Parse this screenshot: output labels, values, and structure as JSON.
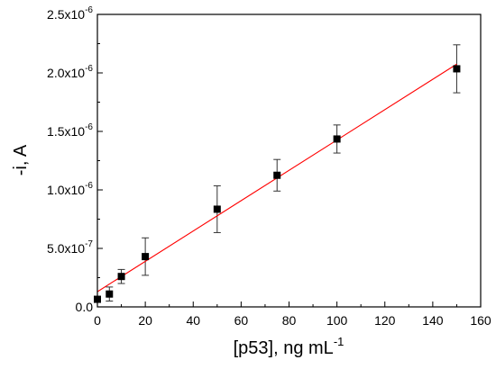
{
  "chart_data": {
    "type": "scatter",
    "title": "",
    "xlabel": "[p53], ng mL",
    "xlabel_sup": "-1",
    "ylabel": "-i, A",
    "xlim": [
      0,
      160
    ],
    "ylim": [
      0,
      2.5e-06
    ],
    "grid": false,
    "legend": "none",
    "x_ticks": [
      {
        "value": 0,
        "label": "0"
      },
      {
        "value": 20,
        "label": "20"
      },
      {
        "value": 40,
        "label": "40"
      },
      {
        "value": 60,
        "label": "60"
      },
      {
        "value": 80,
        "label": "80"
      },
      {
        "value": 100,
        "label": "100"
      },
      {
        "value": 120,
        "label": "120"
      },
      {
        "value": 140,
        "label": "140"
      },
      {
        "value": 160,
        "label": "160"
      }
    ],
    "y_ticks": [
      {
        "value": 0,
        "mantissa": "0.0",
        "exp": ""
      },
      {
        "value": 5e-07,
        "mantissa": "5.0x10",
        "exp": "-7"
      },
      {
        "value": 1e-06,
        "mantissa": "1.0x10",
        "exp": "-6"
      },
      {
        "value": 1.5e-06,
        "mantissa": "1.5x10",
        "exp": "-6"
      },
      {
        "value": 2e-06,
        "mantissa": "2.0x10",
        "exp": "-6"
      },
      {
        "value": 2.5e-06,
        "mantissa": "2.5x10",
        "exp": "-6"
      }
    ],
    "series": [
      {
        "marker": "square",
        "color": "#000000",
        "points": [
          {
            "x": 0,
            "y": 6.5e-08,
            "err": 0
          },
          {
            "x": 5,
            "y": 1.1e-07,
            "err": 6e-08
          },
          {
            "x": 10,
            "y": 2.6e-07,
            "err": 6e-08
          },
          {
            "x": 20,
            "y": 4.3e-07,
            "err": 1.6e-07
          },
          {
            "x": 50,
            "y": 8.35e-07,
            "err": 2e-07
          },
          {
            "x": 75,
            "y": 1.125e-06,
            "err": 1.35e-07
          },
          {
            "x": 100,
            "y": 1.435e-06,
            "err": 1.2e-07
          },
          {
            "x": 150,
            "y": 2.035e-06,
            "err": 2.05e-07
          }
        ]
      }
    ],
    "fit_line": {
      "color": "#ff0000",
      "x": [
        0,
        150
      ],
      "y": [
        1.3e-07,
        2.075e-06
      ]
    }
  }
}
